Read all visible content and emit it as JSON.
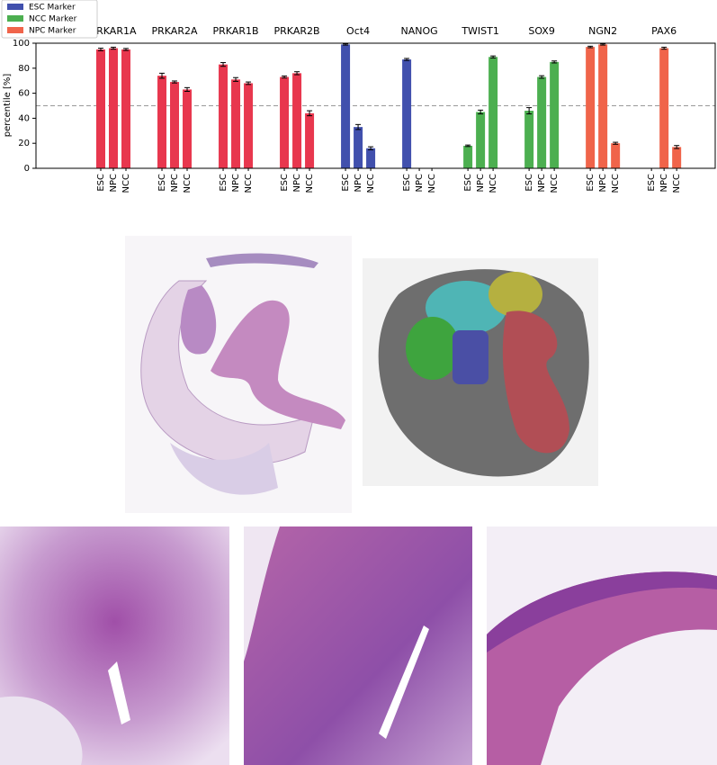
{
  "chart_data": {
    "type": "bar",
    "ylabel": "percentile [%]",
    "ylim": [
      0,
      100
    ],
    "yticks": [
      0,
      20,
      40,
      60,
      80,
      100
    ],
    "hline": 50,
    "subcategories": [
      "ESC",
      "NPC",
      "NCC"
    ],
    "legend": [
      {
        "name": "ESC Marker",
        "color": "#4150ad"
      },
      {
        "name": "NCC Marker",
        "color": "#4caf50"
      },
      {
        "name": "NPC Marker",
        "color": "#f0644a"
      }
    ],
    "groups": [
      {
        "name": "PRKAR1A",
        "color": "#e8374e",
        "values": [
          95,
          96,
          95
        ],
        "errors": [
          1,
          0.8,
          0.8
        ]
      },
      {
        "name": "PRKAR2A",
        "color": "#e8374e",
        "values": [
          74,
          69,
          63
        ],
        "errors": [
          2,
          0.8,
          1.5
        ]
      },
      {
        "name": "PRKAR1B",
        "color": "#e8374e",
        "values": [
          83,
          71,
          68
        ],
        "errors": [
          1.5,
          1.5,
          1
        ]
      },
      {
        "name": "PRKAR2B",
        "color": "#e8374e",
        "values": [
          73,
          76,
          44
        ],
        "errors": [
          0.8,
          1.2,
          2
        ]
      },
      {
        "name": "Oct4",
        "color": "#4150ad",
        "values": [
          99,
          33,
          16
        ],
        "errors": [
          0.5,
          2,
          1.2
        ]
      },
      {
        "name": "NANOG",
        "color": "#4150ad",
        "values": [
          87,
          0,
          0
        ],
        "errors": [
          0.8,
          0,
          0
        ]
      },
      {
        "name": "TWIST1",
        "color": "#4caf50",
        "values": [
          18,
          45,
          89
        ],
        "errors": [
          0.6,
          1.5,
          0.8
        ]
      },
      {
        "name": "SOX9",
        "color": "#4caf50",
        "values": [
          46,
          73,
          85
        ],
        "errors": [
          2.5,
          1,
          0.8
        ]
      },
      {
        "name": "NGN2",
        "color": "#f0644a",
        "values": [
          97,
          99,
          20
        ],
        "errors": [
          0.6,
          0.5,
          0.8
        ]
      },
      {
        "name": "PAX6",
        "color": "#f0644a",
        "values": [
          0,
          96,
          17
        ],
        "errors": [
          0,
          0.8,
          1.2
        ]
      }
    ]
  }
}
